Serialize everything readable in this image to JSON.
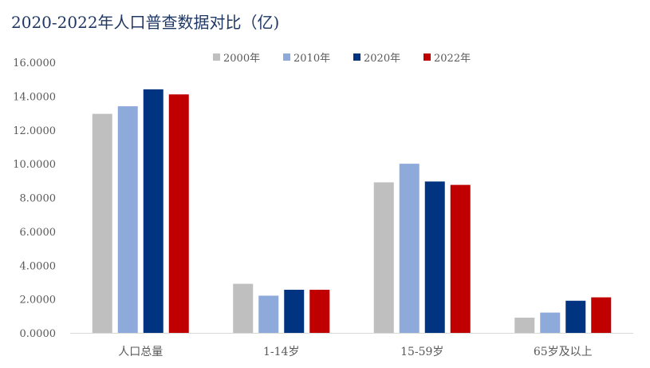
{
  "title": "2020-2022年人口普查数据对比（亿)",
  "chart_data": {
    "type": "bar",
    "title": "2020-2022年人口普查数据对比（亿)",
    "categories": [
      "人口总量",
      "1-14岁",
      "15-59岁",
      "65岁及以上"
    ],
    "series": [
      {
        "name": "2000年",
        "color": "#bfbfbf",
        "values": [
          12.95,
          2.9,
          8.9,
          0.9
        ]
      },
      {
        "name": "2010年",
        "color": "#8eaadb",
        "values": [
          13.4,
          2.2,
          10.0,
          1.2
        ]
      },
      {
        "name": "2020年",
        "color": "#003380",
        "values": [
          14.4,
          2.55,
          8.95,
          1.9
        ]
      },
      {
        "name": "2022年",
        "color": "#c00000",
        "values": [
          14.1,
          2.55,
          8.75,
          2.1
        ]
      }
    ],
    "ylim": [
      0,
      16
    ],
    "yticks": [
      0,
      2,
      4,
      6,
      8,
      10,
      12,
      14,
      16
    ],
    "ytick_labels": [
      "0.0000",
      "2.0000",
      "4.0000",
      "6.0000",
      "8.0000",
      "10.0000",
      "12.0000",
      "14.0000",
      "16.0000"
    ],
    "xlabel": "",
    "ylabel": "",
    "grid": false,
    "legend_position": "top-center"
  }
}
